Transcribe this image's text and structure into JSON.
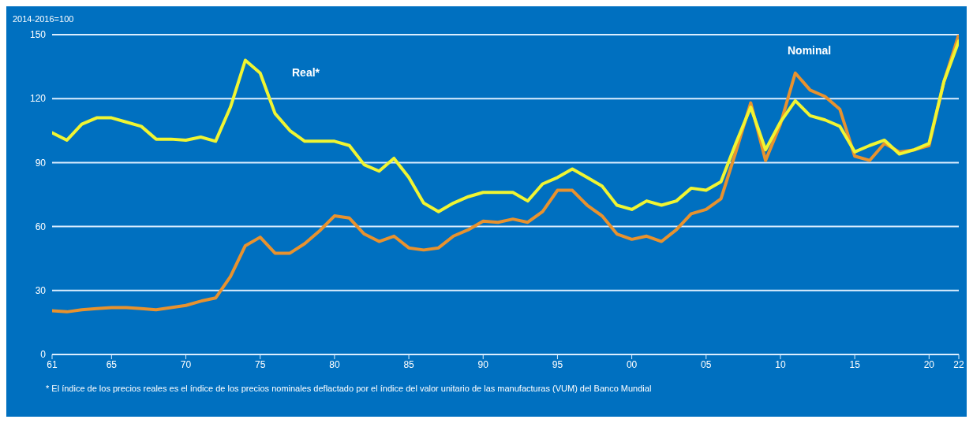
{
  "chart_data": {
    "type": "line",
    "ylabel": "2014-2016=100",
    "x": [
      1961,
      1962,
      1963,
      1964,
      1965,
      1966,
      1967,
      1968,
      1969,
      1970,
      1971,
      1972,
      1973,
      1974,
      1975,
      1976,
      1977,
      1978,
      1979,
      1980,
      1981,
      1982,
      1983,
      1984,
      1985,
      1986,
      1987,
      1988,
      1989,
      1990,
      1991,
      1992,
      1993,
      1994,
      1995,
      1996,
      1997,
      1998,
      1999,
      2000,
      2001,
      2002,
      2003,
      2004,
      2005,
      2006,
      2007,
      2008,
      2009,
      2010,
      2011,
      2012,
      2013,
      2014,
      2015,
      2016,
      2017,
      2018,
      2019,
      2020,
      2021,
      2022
    ],
    "series": [
      {
        "name": "Nominal",
        "color": "#e8922e",
        "values": [
          20.5,
          20,
          21,
          21.5,
          22,
          22,
          21.5,
          21,
          22,
          23,
          25,
          26.5,
          36.5,
          51,
          55,
          47.5,
          47.5,
          52,
          58,
          65,
          64,
          56.5,
          53,
          55.5,
          50,
          49,
          50,
          55.5,
          58.5,
          62.5,
          62,
          63.5,
          62,
          67,
          77,
          77,
          70,
          65,
          56.5,
          54,
          55.5,
          53,
          58.5,
          66,
          68,
          73,
          95,
          118,
          91,
          108,
          132,
          124,
          121,
          115,
          93,
          91,
          99,
          95,
          96,
          98,
          128,
          150
        ]
      },
      {
        "name": "Real*",
        "color": "#f0f532",
        "values": [
          104,
          100.5,
          108,
          111,
          111,
          109,
          107,
          101,
          101,
          100.5,
          102,
          100,
          116,
          138,
          132,
          113,
          105,
          100,
          100,
          100,
          98,
          89,
          86,
          92,
          83,
          71,
          67,
          71,
          74,
          76,
          76,
          76,
          72,
          80,
          83,
          87,
          83,
          79,
          70,
          68,
          72,
          70,
          72,
          78,
          77,
          81,
          99,
          116,
          96,
          109,
          119,
          112,
          110,
          107,
          95,
          98,
          100.5,
          94,
          96,
          99,
          128,
          147
        ]
      }
    ],
    "xlim": [
      1961,
      2022
    ],
    "xticks": [
      {
        "value": 1961,
        "label": "61"
      },
      {
        "value": 1965,
        "label": "65"
      },
      {
        "value": 1970,
        "label": "70"
      },
      {
        "value": 1975,
        "label": "75"
      },
      {
        "value": 1980,
        "label": "80"
      },
      {
        "value": 1985,
        "label": "85"
      },
      {
        "value": 1990,
        "label": "90"
      },
      {
        "value": 1995,
        "label": "95"
      },
      {
        "value": 2000,
        "label": "00"
      },
      {
        "value": 2005,
        "label": "05"
      },
      {
        "value": 2010,
        "label": "10"
      },
      {
        "value": 2015,
        "label": "15"
      },
      {
        "value": 2020,
        "label": "20"
      },
      {
        "value": 2022,
        "label": "22"
      }
    ],
    "ylim": [
      0,
      150
    ],
    "yticks": [
      0,
      30,
      60,
      90,
      120,
      150
    ],
    "grid": "y",
    "legend": false,
    "marker": "none",
    "line_style": "solid",
    "annotations": [
      "* El índice de los precios reales es el índice de los precios nominales deflactado por el índice del valor unitario de las manufacturas (VUM) del Banco Mundial"
    ]
  }
}
